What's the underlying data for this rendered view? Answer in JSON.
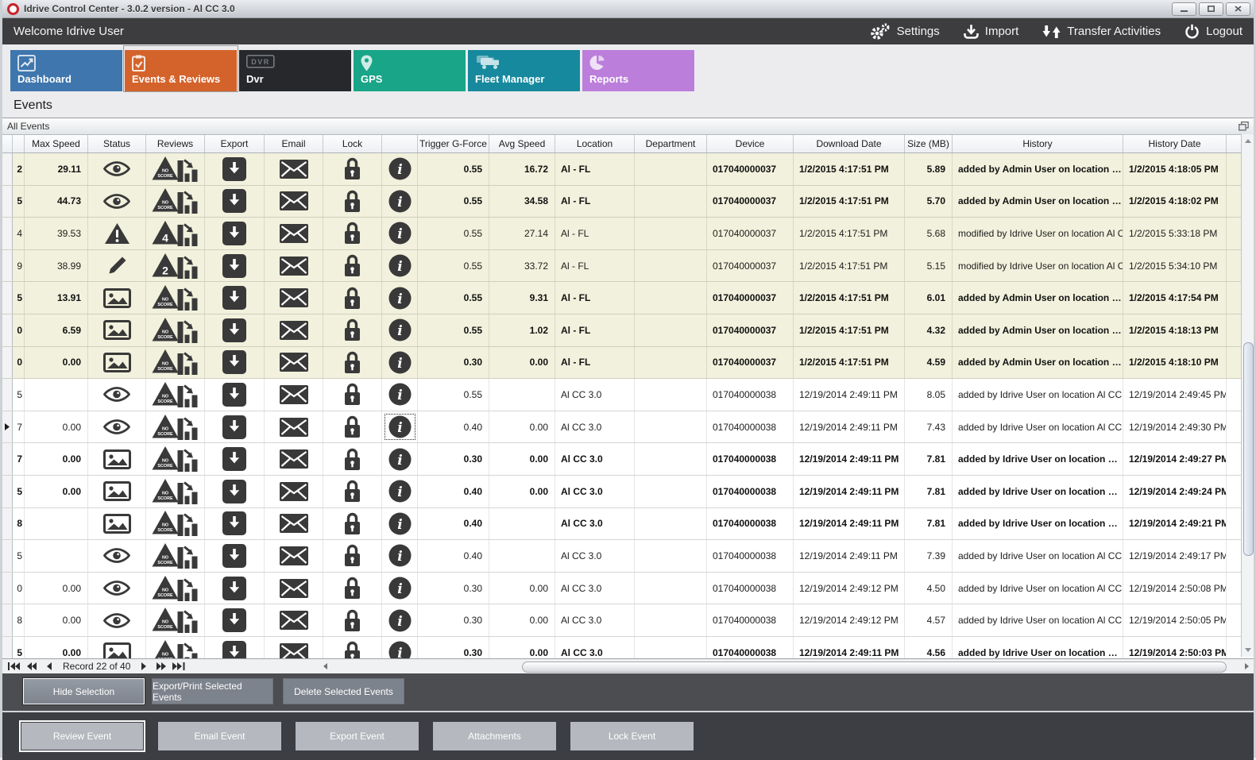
{
  "window": {
    "title": "Idrive Control Center - 3.0.2 version - Al CC 3.0",
    "controls": [
      "minimize",
      "maximize",
      "close"
    ]
  },
  "topbar": {
    "welcome": "Welcome Idrive User",
    "actions": [
      {
        "label": "Settings",
        "icon": "gears-icon"
      },
      {
        "label": "Import",
        "icon": "import-icon"
      },
      {
        "label": "Transfer Activities",
        "icon": "transfer-arrows-icon"
      },
      {
        "label": "Logout",
        "icon": "power-icon"
      }
    ]
  },
  "tabs": [
    {
      "label": "Dashboard",
      "icon": "dashboard-chart-icon",
      "color": "#3e76ad",
      "selected": false
    },
    {
      "label": "Events & Reviews",
      "icon": "clipboard-check-icon",
      "color": "#d4632b",
      "selected": true
    },
    {
      "label": "Dvr",
      "icon": "dvr-logo-icon",
      "color": "#26282c",
      "selected": false
    },
    {
      "label": "GPS",
      "icon": "map-pin-icon",
      "color": "#18a588",
      "selected": false
    },
    {
      "label": "Fleet Manager",
      "icon": "trucks-icon",
      "color": "#17899e",
      "selected": false
    },
    {
      "label": "Reports",
      "icon": "pie-chart-icon",
      "color": "#bc7edb",
      "selected": false
    }
  ],
  "page_title": "Events",
  "panel": {
    "title": "All Events",
    "corner_icon": "panel-windows-icon"
  },
  "table": {
    "columns": [
      "",
      "Max Speed",
      "Status",
      "Reviews",
      "Export",
      "Email",
      "Lock",
      "",
      "Trigger G-Force",
      "Avg Speed",
      "Location",
      "Department",
      "Device",
      "Download Date",
      "Size (MB)",
      "History",
      "History Date"
    ],
    "rows": [
      {
        "id": "2",
        "max_speed": "29.11",
        "status_icon": "eye-icon",
        "review_badge": "NO SCORE",
        "trigger_g_force": "0.55",
        "avg_speed": "16.72",
        "location": "Al - FL",
        "department": "",
        "device": "017040000037",
        "download_date": "1/2/2015 4:17:51 PM",
        "size_mb": "5.89",
        "history": "added by Admin User on location …",
        "history_date": "1/2/2015 4:18:05 PM",
        "bold": true,
        "selected": true,
        "focused": false
      },
      {
        "id": "5",
        "max_speed": "44.73",
        "status_icon": "eye-icon",
        "review_badge": "NO SCORE",
        "trigger_g_force": "0.55",
        "avg_speed": "34.58",
        "location": "Al - FL",
        "department": "",
        "device": "017040000037",
        "download_date": "1/2/2015 4:17:51 PM",
        "size_mb": "5.70",
        "history": "added by Admin User on location …",
        "history_date": "1/2/2015 4:18:02 PM",
        "bold": true,
        "selected": true,
        "focused": false
      },
      {
        "id": "4",
        "max_speed": "39.53",
        "status_icon": "warning-icon",
        "review_badge": "4",
        "trigger_g_force": "0.55",
        "avg_speed": "27.14",
        "location": "Al - FL",
        "department": "",
        "device": "017040000037",
        "download_date": "1/2/2015 4:17:51 PM",
        "size_mb": "5.68",
        "history": "modified by Idrive User on location Al C…",
        "history_date": "1/2/2015 5:33:18 PM",
        "bold": false,
        "selected": true,
        "focused": false
      },
      {
        "id": "9",
        "max_speed": "38.99",
        "status_icon": "pencil-icon",
        "review_badge": "2",
        "trigger_g_force": "0.55",
        "avg_speed": "33.72",
        "location": "Al - FL",
        "department": "",
        "device": "017040000037",
        "download_date": "1/2/2015 4:17:51 PM",
        "size_mb": "5.15",
        "history": "modified by Idrive User on location Al C…",
        "history_date": "1/2/2015 5:34:10 PM",
        "bold": false,
        "selected": true,
        "focused": false
      },
      {
        "id": "5",
        "max_speed": "13.91",
        "status_icon": "image-icon",
        "review_badge": "NO SCORE",
        "trigger_g_force": "0.55",
        "avg_speed": "9.31",
        "location": "Al - FL",
        "department": "",
        "device": "017040000037",
        "download_date": "1/2/2015 4:17:51 PM",
        "size_mb": "6.01",
        "history": "added by Admin User on location …",
        "history_date": "1/2/2015 4:17:54 PM",
        "bold": true,
        "selected": true,
        "focused": false
      },
      {
        "id": "0",
        "max_speed": "6.59",
        "status_icon": "image-icon",
        "review_badge": "NO SCORE",
        "trigger_g_force": "0.55",
        "avg_speed": "1.02",
        "location": "Al - FL",
        "department": "",
        "device": "017040000037",
        "download_date": "1/2/2015 4:17:51 PM",
        "size_mb": "4.32",
        "history": "added by Admin User on location …",
        "history_date": "1/2/2015 4:18:13 PM",
        "bold": true,
        "selected": true,
        "focused": false
      },
      {
        "id": "0",
        "max_speed": "0.00",
        "status_icon": "image-icon",
        "review_badge": "NO SCORE",
        "trigger_g_force": "0.30",
        "avg_speed": "0.00",
        "location": "Al - FL",
        "department": "",
        "device": "017040000037",
        "download_date": "1/2/2015 4:17:51 PM",
        "size_mb": "4.59",
        "history": "added by Admin User on location …",
        "history_date": "1/2/2015 4:18:10 PM",
        "bold": true,
        "selected": true,
        "focused": false
      },
      {
        "id": "5",
        "max_speed": "",
        "status_icon": "eye-icon",
        "review_badge": "NO SCORE",
        "trigger_g_force": "0.55",
        "avg_speed": "",
        "location": "Al CC 3.0",
        "department": "",
        "device": "017040000038",
        "download_date": "12/19/2014 2:49:11 PM",
        "size_mb": "8.05",
        "history": "added by Idrive User on location Al CC …",
        "history_date": "12/19/2014 2:49:45 PM",
        "bold": false,
        "selected": false,
        "focused": false
      },
      {
        "id": "7",
        "max_speed": "0.00",
        "status_icon": "eye-icon",
        "review_badge": "NO SCORE",
        "trigger_g_force": "0.40",
        "avg_speed": "0.00",
        "location": "Al CC 3.0",
        "department": "",
        "device": "017040000038",
        "download_date": "12/19/2014 2:49:11 PM",
        "size_mb": "7.43",
        "history": "added by Idrive User on location Al CC …",
        "history_date": "12/19/2014 2:49:30 PM",
        "bold": false,
        "selected": false,
        "focused": true
      },
      {
        "id": "7",
        "max_speed": "0.00",
        "status_icon": "image-icon",
        "review_badge": "NO SCORE",
        "trigger_g_force": "0.30",
        "avg_speed": "0.00",
        "location": "Al CC 3.0",
        "department": "",
        "device": "017040000038",
        "download_date": "12/19/2014 2:49:11 PM",
        "size_mb": "7.81",
        "history": "added by Idrive User on location …",
        "history_date": "12/19/2014 2:49:27 PM",
        "bold": true,
        "selected": false,
        "focused": false
      },
      {
        "id": "5",
        "max_speed": "0.00",
        "status_icon": "image-icon",
        "review_badge": "NO SCORE",
        "trigger_g_force": "0.40",
        "avg_speed": "0.00",
        "location": "Al CC 3.0",
        "department": "",
        "device": "017040000038",
        "download_date": "12/19/2014 2:49:11 PM",
        "size_mb": "7.81",
        "history": "added by Idrive User on location …",
        "history_date": "12/19/2014 2:49:24 PM",
        "bold": true,
        "selected": false,
        "focused": false
      },
      {
        "id": "8",
        "max_speed": "",
        "status_icon": "image-icon",
        "review_badge": "NO SCORE",
        "trigger_g_force": "0.40",
        "avg_speed": "",
        "location": "Al CC 3.0",
        "department": "",
        "device": "017040000038",
        "download_date": "12/19/2014 2:49:11 PM",
        "size_mb": "7.81",
        "history": "added by Idrive User on location …",
        "history_date": "12/19/2014 2:49:21 PM",
        "bold": true,
        "selected": false,
        "focused": false
      },
      {
        "id": "5",
        "max_speed": "",
        "status_icon": "eye-icon",
        "review_badge": "NO SCORE",
        "trigger_g_force": "0.40",
        "avg_speed": "",
        "location": "Al CC 3.0",
        "department": "",
        "device": "017040000038",
        "download_date": "12/19/2014 2:49:11 PM",
        "size_mb": "7.39",
        "history": "added by Idrive User on location Al CC …",
        "history_date": "12/19/2014 2:49:17 PM",
        "bold": false,
        "selected": false,
        "focused": false
      },
      {
        "id": "0",
        "max_speed": "0.00",
        "status_icon": "eye-icon",
        "review_badge": "NO SCORE",
        "trigger_g_force": "0.30",
        "avg_speed": "0.00",
        "location": "Al CC 3.0",
        "department": "",
        "device": "017040000038",
        "download_date": "12/19/2014 2:49:12 PM",
        "size_mb": "4.50",
        "history": "added by Idrive User on location Al CC …",
        "history_date": "12/19/2014 2:50:08 PM",
        "bold": false,
        "selected": false,
        "focused": false
      },
      {
        "id": "8",
        "max_speed": "0.00",
        "status_icon": "eye-icon",
        "review_badge": "NO SCORE",
        "trigger_g_force": "0.30",
        "avg_speed": "0.00",
        "location": "Al CC 3.0",
        "department": "",
        "device": "017040000038",
        "download_date": "12/19/2014 2:49:12 PM",
        "size_mb": "4.57",
        "history": "added by Idrive User on location Al CC …",
        "history_date": "12/19/2014 2:50:05 PM",
        "bold": false,
        "selected": false,
        "focused": false
      },
      {
        "id": "5",
        "max_speed": "0.00",
        "status_icon": "image-icon",
        "review_badge": "NO SCORE",
        "trigger_g_force": "0.30",
        "avg_speed": "0.00",
        "location": "Al CC 3.0",
        "department": "",
        "device": "017040000038",
        "download_date": "12/19/2014 2:49:11 PM",
        "size_mb": "4.56",
        "history": "added by Idrive User on location …",
        "history_date": "12/19/2014 2:50:03 PM",
        "bold": true,
        "selected": false,
        "focused": false
      }
    ]
  },
  "navigator": {
    "record_text": "Record 22 of 40",
    "buttons": [
      "first-record",
      "previous-page",
      "previous-record",
      "next-record",
      "next-page",
      "last-record"
    ]
  },
  "actions_primary": [
    {
      "label": "Hide Selection",
      "selected": true
    },
    {
      "label": "Export/Print Selected Events",
      "selected": false
    },
    {
      "label": "Delete Selected  Events",
      "selected": false
    }
  ],
  "actions_secondary": [
    {
      "label": "Review Event",
      "selected": true
    },
    {
      "label": "Email Event",
      "selected": false
    },
    {
      "label": "Export Event",
      "selected": false
    },
    {
      "label": "Attachments",
      "selected": false
    },
    {
      "label": "Lock Event",
      "selected": false
    }
  ],
  "colors": {
    "toolbar_dark": "#3d3d3f",
    "selected_row": "#f1f1dd",
    "icon_dark": "#393939",
    "panel1_bg": "#4b4d51",
    "panel2_bg": "#3c3e43",
    "logo_red": "#c8232b"
  }
}
